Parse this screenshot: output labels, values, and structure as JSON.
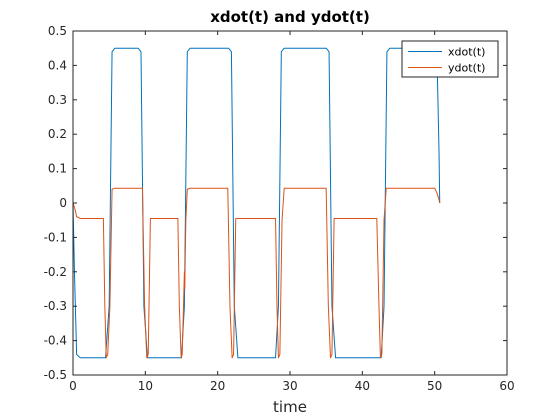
{
  "chart_data": {
    "type": "line",
    "title": "xdot(t) and ydot(t)",
    "xlabel": "time",
    "ylabel": "",
    "xlim": [
      0,
      60
    ],
    "ylim": [
      -0.5,
      0.5
    ],
    "xticks": [
      0,
      10,
      20,
      30,
      40,
      50,
      60
    ],
    "yticks": [
      0.5,
      0.4,
      0.3,
      0.2,
      0.1,
      0,
      -0.1,
      -0.2,
      -0.3,
      -0.4,
      -0.5
    ],
    "grid": false,
    "legend_position": "top-right",
    "series": [
      {
        "name": "xdot(t)",
        "color": "#0072BD",
        "x": [
          0,
          0.2,
          0.5,
          1,
          4.5,
          5.0,
          5.4,
          5.8,
          9.0,
          9.4,
          9.8,
          10.3,
          15.0,
          15.4,
          15.8,
          16.2,
          19.5,
          21.5,
          21.9,
          22.3,
          22.8,
          28.0,
          28.4,
          28.8,
          29.2,
          35.0,
          35.4,
          35.8,
          36.3,
          42.6,
          43.0,
          43.4,
          43.8,
          50.0,
          50.3,
          50.6,
          50.7
        ],
        "y": [
          0,
          -0.2,
          -0.44,
          -0.45,
          -0.45,
          -0.3,
          0.44,
          0.45,
          0.45,
          0.44,
          -0.3,
          -0.45,
          -0.45,
          -0.3,
          0.44,
          0.45,
          0.45,
          0.45,
          0.44,
          -0.3,
          -0.45,
          -0.45,
          -0.3,
          0.44,
          0.45,
          0.45,
          0.44,
          -0.3,
          -0.45,
          -0.45,
          -0.3,
          0.44,
          0.45,
          0.45,
          0.45,
          0.15,
          0.0
        ]
      },
      {
        "name": "ydot(t)",
        "color": "#D95319",
        "x": [
          0,
          0.3,
          0.5,
          1,
          4.2,
          4.4,
          4.6,
          4.8,
          5.1,
          5.4,
          5.8,
          9.6,
          9.9,
          10.2,
          10.4,
          10.7,
          14.5,
          14.7,
          14.95,
          15.1,
          15.4,
          15.45,
          15.6,
          15.8,
          16.2,
          21.4,
          21.7,
          22.0,
          22.2,
          22.5,
          28.0,
          28.2,
          28.4,
          28.6,
          28.9,
          29.2,
          35.0,
          35.3,
          35.6,
          35.8,
          36.1,
          42.0,
          42.3,
          42.5,
          42.7,
          43.0,
          43.3,
          50.0,
          50.3,
          50.6,
          50.7
        ],
        "y": [
          0,
          -0.02,
          -0.04,
          -0.045,
          -0.045,
          -0.3,
          -0.45,
          -0.44,
          -0.3,
          0.04,
          0.043,
          0.043,
          -0.3,
          -0.45,
          -0.44,
          -0.045,
          -0.045,
          -0.3,
          -0.45,
          -0.44,
          -0.2,
          -0.25,
          -0.05,
          0.04,
          0.043,
          0.043,
          -0.3,
          -0.45,
          -0.44,
          -0.045,
          -0.045,
          -0.3,
          -0.45,
          -0.44,
          -0.05,
          0.043,
          0.043,
          -0.3,
          -0.45,
          -0.44,
          -0.045,
          -0.045,
          -0.3,
          -0.45,
          -0.44,
          -0.05,
          0.043,
          0.043,
          0.03,
          0.01,
          0.0
        ]
      }
    ]
  }
}
